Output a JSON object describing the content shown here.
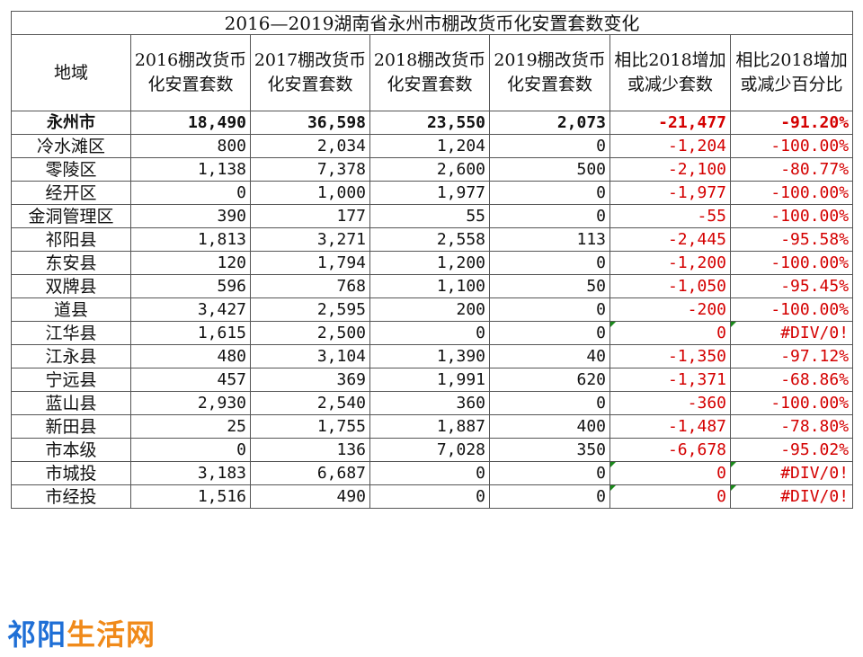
{
  "title": "2016—2019湖南省永州市棚改货币化安置套数变化",
  "headers": [
    "地域",
    "2016棚改货币化安置套数",
    "2017棚改货币化安置套数",
    "2018棚改货币化安置套数",
    "2019棚改货币化安置套数",
    "相比2018增加或减少套数",
    "相比2018增加或减少百分比"
  ],
  "rows": [
    {
      "region": "永州市",
      "y2016": "18,490",
      "y2017": "36,598",
      "y2018": "23,550",
      "y2019": "2,073",
      "diff": "-21,477",
      "pct": "-91.20%"
    },
    {
      "region": "冷水滩区",
      "y2016": "800",
      "y2017": "2,034",
      "y2018": "1,204",
      "y2019": "0",
      "diff": "-1,204",
      "pct": "-100.00%"
    },
    {
      "region": "零陵区",
      "y2016": "1,138",
      "y2017": "7,378",
      "y2018": "2,600",
      "y2019": "500",
      "diff": "-2,100",
      "pct": "-80.77%"
    },
    {
      "region": "经开区",
      "y2016": "0",
      "y2017": "1,000",
      "y2018": "1,977",
      "y2019": "0",
      "diff": "-1,977",
      "pct": "-100.00%"
    },
    {
      "region": "金洞管理区",
      "y2016": "390",
      "y2017": "177",
      "y2018": "55",
      "y2019": "0",
      "diff": "-55",
      "pct": "-100.00%"
    },
    {
      "region": "祁阳县",
      "y2016": "1,813",
      "y2017": "3,271",
      "y2018": "2,558",
      "y2019": "113",
      "diff": "-2,445",
      "pct": "-95.58%"
    },
    {
      "region": "东安县",
      "y2016": "120",
      "y2017": "1,794",
      "y2018": "1,200",
      "y2019": "0",
      "diff": "-1,200",
      "pct": "-100.00%"
    },
    {
      "region": "双牌县",
      "y2016": "596",
      "y2017": "768",
      "y2018": "1,100",
      "y2019": "50",
      "diff": "-1,050",
      "pct": "-95.45%"
    },
    {
      "region": "道县",
      "y2016": "3,427",
      "y2017": "2,595",
      "y2018": "200",
      "y2019": "0",
      "diff": "-200",
      "pct": "-100.00%"
    },
    {
      "region": "江华县",
      "y2016": "1,615",
      "y2017": "2,500",
      "y2018": "0",
      "y2019": "0",
      "diff": "0",
      "pct": "#DIV/0!"
    },
    {
      "region": "江永县",
      "y2016": "480",
      "y2017": "3,104",
      "y2018": "1,390",
      "y2019": "40",
      "diff": "-1,350",
      "pct": "-97.12%"
    },
    {
      "region": "宁远县",
      "y2016": "457",
      "y2017": "369",
      "y2018": "1,991",
      "y2019": "620",
      "diff": "-1,371",
      "pct": "-68.86%"
    },
    {
      "region": "蓝山县",
      "y2016": "2,930",
      "y2017": "2,540",
      "y2018": "360",
      "y2019": "0",
      "diff": "-360",
      "pct": "-100.00%"
    },
    {
      "region": "新田县",
      "y2016": "25",
      "y2017": "1,755",
      "y2018": "1,887",
      "y2019": "400",
      "diff": "-1,487",
      "pct": "-78.80%"
    },
    {
      "region": "市本级",
      "y2016": "0",
      "y2017": "136",
      "y2018": "7,028",
      "y2019": "350",
      "diff": "-6,678",
      "pct": "-95.02%"
    },
    {
      "region": "市城投",
      "y2016": "3,183",
      "y2017": "6,687",
      "y2018": "0",
      "y2019": "0",
      "diff": "0",
      "pct": "#DIV/0!"
    },
    {
      "region": "市经投",
      "y2016": "1,516",
      "y2017": "490",
      "y2018": "0",
      "y2019": "0",
      "diff": "0",
      "pct": "#DIV/0!"
    }
  ],
  "watermark": {
    "part1": "祁阳",
    "part2": "生活网"
  },
  "colors": {
    "negative": "#d40000",
    "border": "#555555",
    "logo_blue": "#1f6fd6",
    "logo_orange": "#f08a1a",
    "error_flag": "#1a8a1a"
  }
}
